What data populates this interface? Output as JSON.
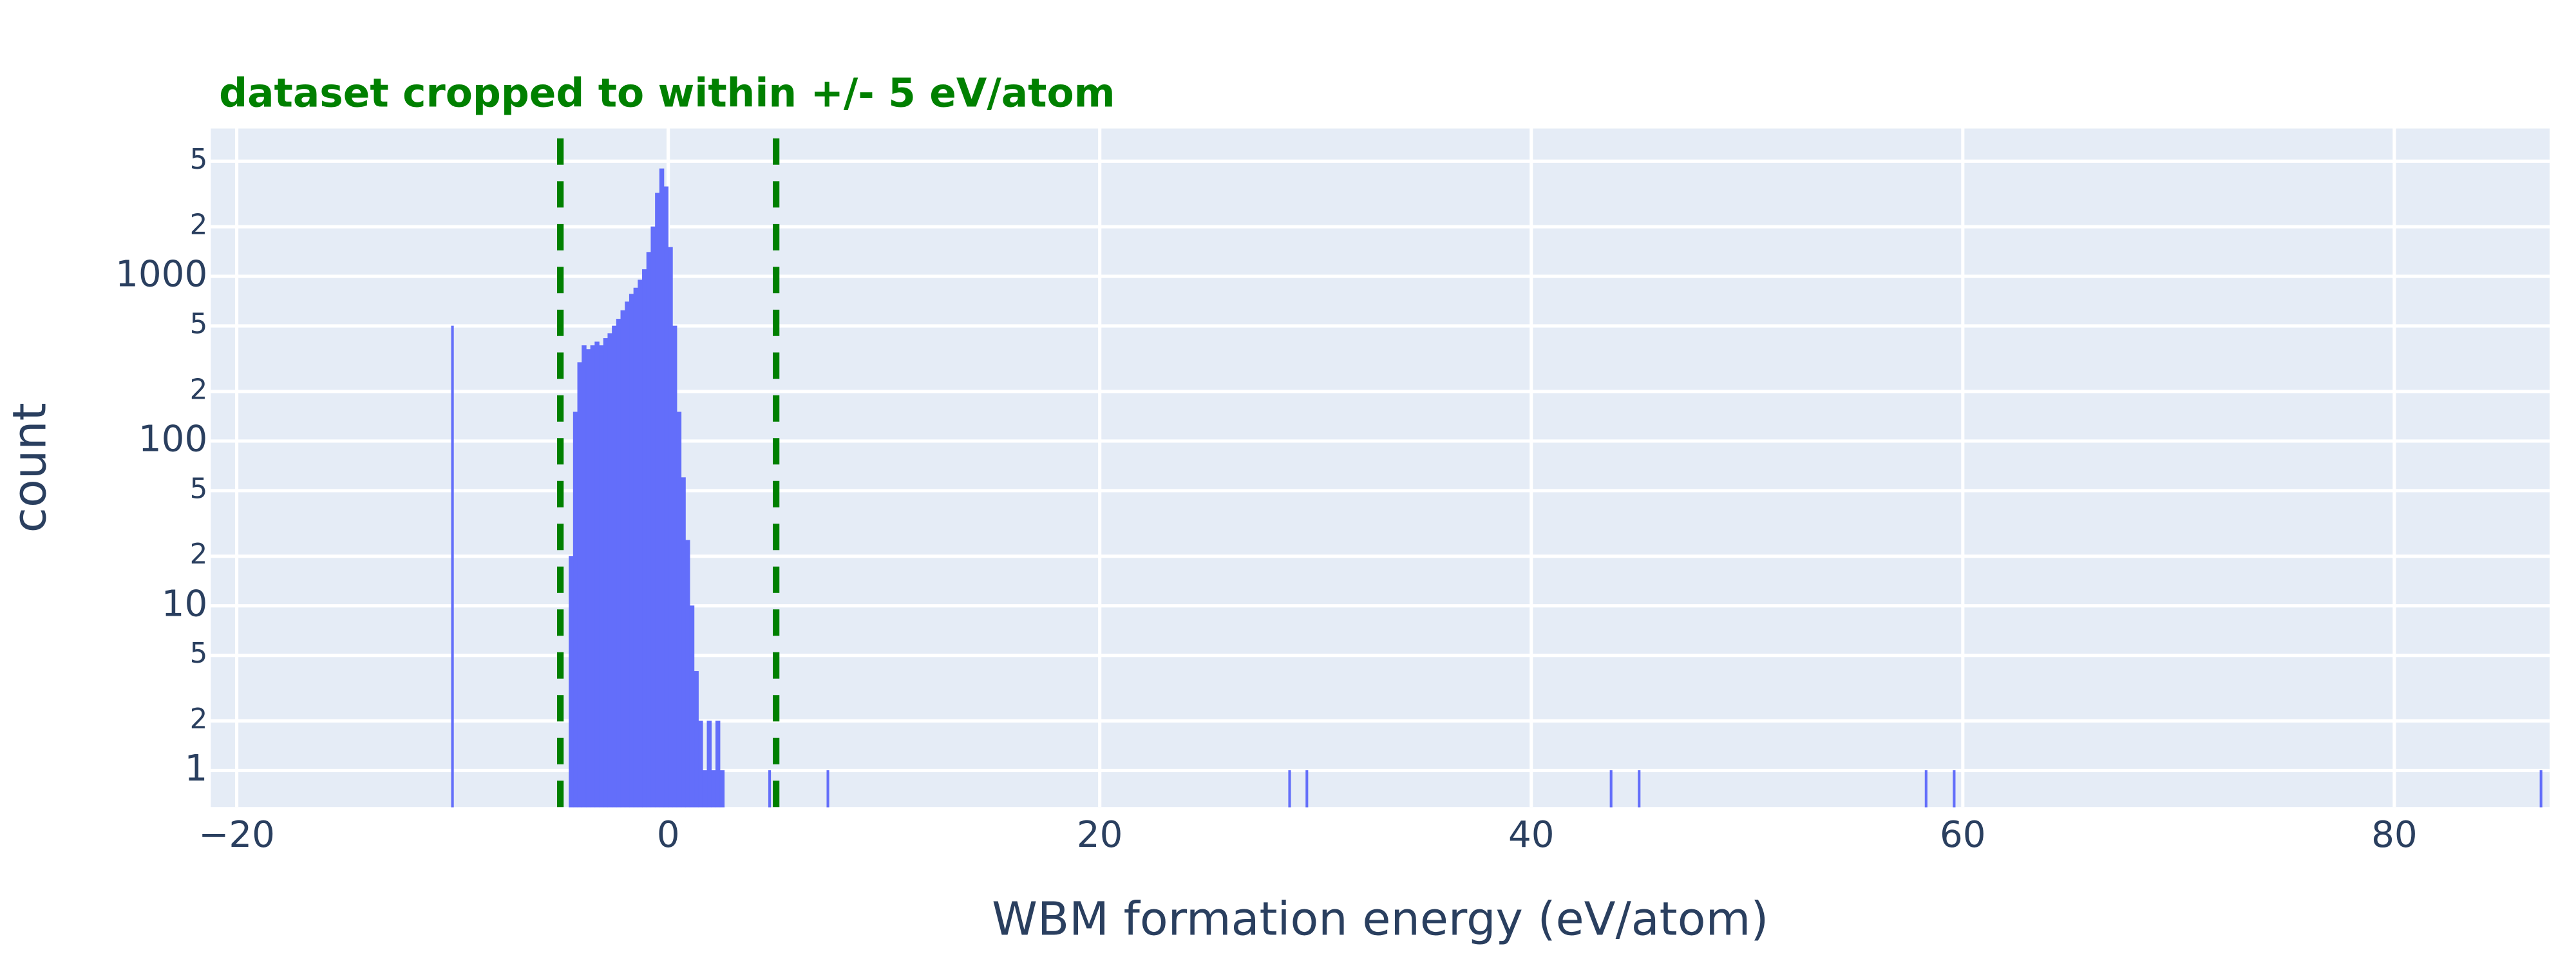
{
  "chart_data": {
    "type": "histogram",
    "title": "dataset cropped to within +/- 5 eV/atom",
    "x_label": "WBM formation energy (eV/atom)",
    "y_label": "count",
    "color": "#636efa",
    "bins": [
      -10.05,
      -9.95,
      -4.6,
      -4.4,
      -4.2,
      -4.0,
      -3.8,
      -3.6,
      -3.4,
      -3.2,
      -3.0,
      -2.8,
      -2.6,
      -2.4,
      -2.2,
      -2.0,
      -1.8,
      -1.6,
      -1.4,
      -1.2,
      -1.0,
      -0.8,
      -0.6,
      -0.4,
      -0.2,
      0.0,
      0.2,
      0.4,
      0.6,
      0.8,
      1.0,
      1.2,
      1.4,
      1.6,
      1.8,
      2.0,
      2.2,
      2.4,
      2.6,
      4.65,
      4.75,
      7.35,
      7.45,
      28.75,
      28.85,
      29.55,
      29.65,
      43.65,
      43.75,
      44.95,
      45.05,
      58.25,
      58.35,
      59.55,
      59.65,
      86.75,
      86.85
    ],
    "counts": [
      500,
      0,
      20,
      150,
      300,
      380,
      360,
      380,
      400,
      380,
      420,
      450,
      500,
      550,
      620,
      700,
      780,
      850,
      950,
      1100,
      1400,
      2000,
      3200,
      4500,
      3500,
      1500,
      500,
      150,
      60,
      25,
      10,
      4,
      2,
      1,
      2,
      1,
      2,
      1,
      0,
      1,
      0,
      1,
      0,
      1,
      0,
      1,
      0,
      1,
      0,
      1,
      0,
      1,
      0,
      1,
      0,
      1
    ],
    "xlim": [
      -21.2,
      87.2
    ],
    "xticks": [
      {
        "value": -20,
        "label": "−20"
      },
      0,
      20,
      40,
      60,
      80
    ],
    "ylim": [
      0.6,
      7900
    ],
    "log_y": true,
    "yticks": [
      1,
      2,
      5,
      10,
      {
        "value": 20,
        "label": "2"
      },
      {
        "value": 50,
        "label": "5"
      },
      100,
      {
        "value": 200,
        "label": "2"
      },
      {
        "value": 500,
        "label": "5"
      },
      1000,
      {
        "value": 2000,
        "label": "2"
      },
      {
        "value": 5000,
        "label": "5"
      }
    ],
    "grid": true,
    "vlines": [
      -5,
      5
    ],
    "vline_color": "green"
  }
}
